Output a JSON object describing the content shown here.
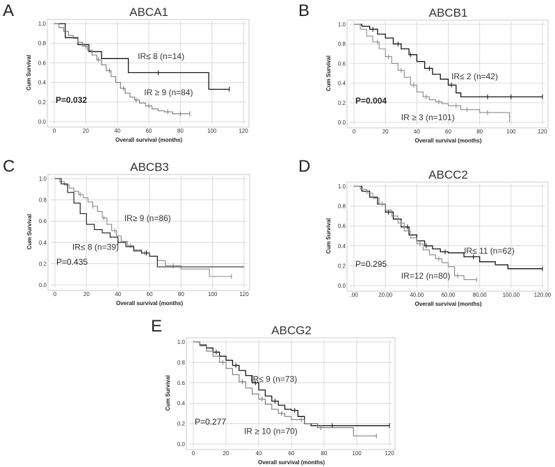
{
  "panels": {
    "A": "A",
    "B": "B",
    "C": "C",
    "D": "D",
    "E": "E"
  },
  "chart_data": [
    {
      "panel": "A",
      "type": "line",
      "title": "ABCA1",
      "xlabel": "Overall survival (months)",
      "ylabel": "Cum Survival",
      "xlim": [
        0,
        120
      ],
      "ylim": [
        0,
        1
      ],
      "xticks": [
        "0",
        "20",
        "40",
        "60",
        "80",
        "100",
        "120"
      ],
      "yticks": [
        "0.0",
        "0.2",
        "0.4",
        "0.6",
        "0.8",
        "1.0"
      ],
      "pvalue": "P=0.032",
      "pvalue_bold": true,
      "series": [
        {
          "name": "IR≤ 8 (n=14)",
          "color": "#111111",
          "x": [
            0,
            7,
            15,
            22,
            30,
            47,
            65,
            98,
            111
          ],
          "y": [
            1.0,
            0.857,
            0.786,
            0.714,
            0.643,
            0.5,
            0.5,
            0.33,
            0.33
          ],
          "censor_x": [
            66,
            111
          ],
          "label_pos": [
            53,
            0.64
          ]
        },
        {
          "name": "IR ≥ 9 (n=84)",
          "color": "#777777",
          "x": [
            0,
            3,
            6,
            9,
            12,
            15,
            18,
            21,
            24,
            27,
            30,
            33,
            36,
            39,
            42,
            45,
            48,
            51,
            54,
            58,
            62,
            66,
            70,
            75,
            80,
            86
          ],
          "y": [
            1.0,
            0.96,
            0.92,
            0.88,
            0.85,
            0.81,
            0.77,
            0.73,
            0.68,
            0.63,
            0.58,
            0.52,
            0.46,
            0.4,
            0.34,
            0.29,
            0.25,
            0.22,
            0.19,
            0.16,
            0.13,
            0.11,
            0.1,
            0.08,
            0.08,
            0.08
          ],
          "censor_x": [
            20,
            28,
            35,
            44,
            52,
            60,
            72,
            80,
            86
          ],
          "label_pos": [
            57,
            0.27
          ]
        }
      ]
    },
    {
      "panel": "B",
      "type": "line",
      "title": "ABCB1",
      "xlabel": "Overall survival (months)",
      "ylabel": "Cum Survival",
      "xlim": [
        0,
        120
      ],
      "ylim": [
        0,
        1
      ],
      "xticks": [
        "0",
        "20",
        "40",
        "60",
        "80",
        "100",
        "120"
      ],
      "yticks": [
        "0.0",
        "0.2",
        "0.4",
        "0.6",
        "0.8",
        "1.0"
      ],
      "pvalue": "P=0.004",
      "pvalue_bold": true,
      "series": [
        {
          "name": "IR≤ 2 (n=42)",
          "color": "#111111",
          "x": [
            0,
            5,
            10,
            15,
            20,
            25,
            30,
            35,
            40,
            45,
            50,
            55,
            60,
            65,
            68,
            120
          ],
          "y": [
            1.0,
            0.98,
            0.95,
            0.9,
            0.86,
            0.8,
            0.75,
            0.69,
            0.62,
            0.55,
            0.49,
            0.44,
            0.38,
            0.3,
            0.26,
            0.26
          ],
          "censor_x": [
            12,
            28,
            36,
            48,
            62,
            85,
            100,
            120
          ],
          "label_pos": [
            62,
            0.44
          ]
        },
        {
          "name": "IR ≥ 3 (n=101)",
          "color": "#888888",
          "x": [
            0,
            4,
            8,
            12,
            16,
            20,
            24,
            28,
            32,
            36,
            40,
            44,
            48,
            52,
            56,
            60,
            68,
            80,
            90,
            98,
            99
          ],
          "y": [
            1.0,
            0.95,
            0.88,
            0.82,
            0.75,
            0.67,
            0.6,
            0.53,
            0.46,
            0.38,
            0.31,
            0.26,
            0.23,
            0.21,
            0.19,
            0.17,
            0.13,
            0.1,
            0.1,
            0.1,
            0.0
          ],
          "censor_x": [
            15,
            22,
            30,
            38,
            46,
            54,
            65,
            72,
            85
          ],
          "label_pos": [
            30,
            0.02
          ]
        }
      ]
    },
    {
      "panel": "C",
      "type": "line",
      "title": "ABCB3",
      "xlabel": "Overall survival (months)",
      "ylabel": "Cum Survival",
      "xlim": [
        0,
        120
      ],
      "ylim": [
        0,
        1
      ],
      "xticks": [
        "0",
        "20",
        "40",
        "60",
        "80",
        "100",
        "120"
      ],
      "yticks": [
        "0.0",
        "0.2",
        "0.4",
        "0.6",
        "0.8",
        "1.0"
      ],
      "pvalue": "P=0.435",
      "pvalue_bold": false,
      "series": [
        {
          "name": "IR≥ 9 (n=86)",
          "color": "#888888",
          "x": [
            0,
            3,
            6,
            9,
            12,
            15,
            18,
            21,
            24,
            27,
            30,
            33,
            36,
            39,
            42,
            46,
            50,
            55,
            60,
            65,
            70,
            80,
            90,
            98,
            112
          ],
          "y": [
            1.0,
            0.97,
            0.94,
            0.91,
            0.88,
            0.85,
            0.82,
            0.78,
            0.74,
            0.69,
            0.63,
            0.57,
            0.51,
            0.46,
            0.41,
            0.37,
            0.33,
            0.3,
            0.27,
            0.23,
            0.18,
            0.15,
            0.15,
            0.08,
            0.08
          ],
          "censor_x": [
            16,
            24,
            31,
            38,
            48,
            57,
            75,
            112
          ],
          "label_pos": [
            44,
            0.6
          ]
        },
        {
          "name": "IR≤ 8 (n=39)",
          "color": "#111111",
          "x": [
            0,
            4,
            8,
            12,
            16,
            20,
            25,
            30,
            35,
            40,
            45,
            50,
            55,
            60,
            65,
            120
          ],
          "y": [
            1.0,
            0.95,
            0.87,
            0.77,
            0.67,
            0.57,
            0.52,
            0.49,
            0.45,
            0.4,
            0.36,
            0.32,
            0.3,
            0.27,
            0.17,
            0.17
          ],
          "censor_x": [
            40,
            58
          ],
          "label_pos": [
            11,
            0.33
          ]
        }
      ]
    },
    {
      "panel": "D",
      "type": "line",
      "title": "ABCC2",
      "xlabel": "Overall survival (months)",
      "ylabel": "Cum Survival",
      "xlim": [
        0,
        120
      ],
      "ylim": [
        0,
        1
      ],
      "xticks": [
        ".00",
        "20.00",
        "40.00",
        "60.00",
        "80.00",
        "100.00",
        "120.00"
      ],
      "yticks": [
        "0.0",
        "0.2",
        "0.4",
        "0.6",
        "0.8",
        "1.0"
      ],
      "pvalue": "P=0.295",
      "pvalue_bold": false,
      "series": [
        {
          "name": "IR≤ 11 (n=62)",
          "color": "#111111",
          "x": [
            0,
            5,
            10,
            15,
            20,
            25,
            30,
            35,
            40,
            45,
            50,
            55,
            60,
            70,
            80,
            90,
            98,
            120
          ],
          "y": [
            1.0,
            0.95,
            0.89,
            0.82,
            0.74,
            0.67,
            0.59,
            0.51,
            0.45,
            0.4,
            0.37,
            0.34,
            0.33,
            0.29,
            0.24,
            0.21,
            0.17,
            0.17
          ],
          "censor_x": [
            22,
            34,
            46,
            58,
            76,
            120
          ],
          "label_pos": [
            70,
            0.32
          ]
        },
        {
          "name": "IR=12 (n=80)",
          "color": "#888888",
          "x": [
            0,
            4,
            8,
            12,
            16,
            20,
            24,
            28,
            32,
            36,
            40,
            44,
            48,
            52,
            56,
            60,
            64,
            70,
            78
          ],
          "y": [
            1.0,
            0.97,
            0.93,
            0.88,
            0.82,
            0.76,
            0.7,
            0.63,
            0.55,
            0.48,
            0.42,
            0.36,
            0.31,
            0.27,
            0.23,
            0.19,
            0.1,
            0.06,
            0.06
          ],
          "censor_x": [
            18,
            30,
            42,
            54,
            66,
            78
          ],
          "label_pos": [
            30,
            0.07
          ]
        }
      ]
    },
    {
      "panel": "E",
      "type": "line",
      "title": "ABCG2",
      "xlabel": "Overall survival (months)",
      "ylabel": "Cum Survival",
      "xlim": [
        0,
        120
      ],
      "ylim": [
        0,
        1
      ],
      "xticks": [
        "0",
        "20",
        "40",
        "60",
        "80",
        "100",
        "120"
      ],
      "yticks": [
        "0.0",
        "0.2",
        "0.4",
        "0.6",
        "0.8",
        "1.0"
      ],
      "pvalue": "P=0.277",
      "pvalue_bold": false,
      "series": [
        {
          "name": "IR≤ 9 (n=73)",
          "color": "#111111",
          "x": [
            0,
            4,
            8,
            12,
            16,
            20,
            24,
            28,
            32,
            36,
            40,
            44,
            48,
            52,
            56,
            60,
            64,
            68,
            72,
            80,
            120
          ],
          "y": [
            1.0,
            0.97,
            0.94,
            0.9,
            0.86,
            0.82,
            0.77,
            0.72,
            0.67,
            0.6,
            0.53,
            0.47,
            0.42,
            0.38,
            0.34,
            0.33,
            0.27,
            0.2,
            0.18,
            0.18,
            0.18
          ],
          "censor_x": [
            14,
            26,
            38,
            50,
            62,
            85,
            120
          ],
          "label_pos": [
            35,
            0.61
          ]
        },
        {
          "name": "IR ≥ 10 (n=70)",
          "color": "#777777",
          "x": [
            0,
            4,
            8,
            12,
            16,
            20,
            24,
            28,
            32,
            36,
            40,
            44,
            48,
            52,
            56,
            60,
            68,
            76,
            98,
            112
          ],
          "y": [
            1.0,
            0.96,
            0.91,
            0.86,
            0.8,
            0.74,
            0.68,
            0.61,
            0.55,
            0.49,
            0.44,
            0.39,
            0.34,
            0.3,
            0.27,
            0.24,
            0.2,
            0.16,
            0.08,
            0.08
          ],
          "censor_x": [
            18,
            30,
            42,
            54,
            66,
            78,
            112
          ],
          "label_pos": [
            31,
            0.1
          ]
        }
      ]
    }
  ]
}
